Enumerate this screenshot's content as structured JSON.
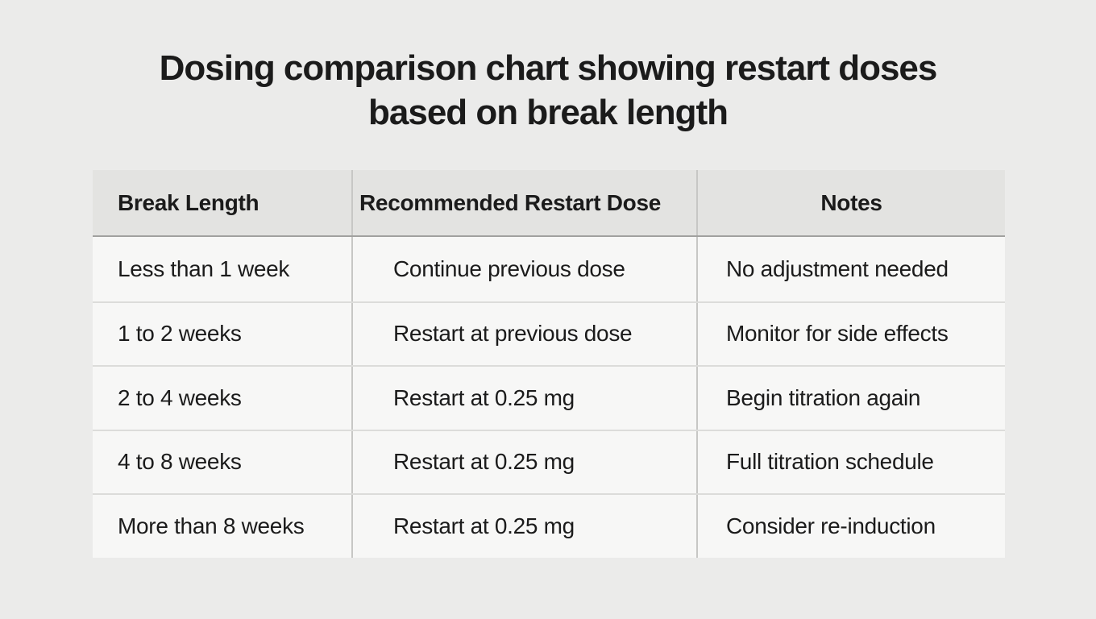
{
  "title": {
    "line1": "Dosing comparison chart showing restart doses",
    "line2": "based on break length"
  },
  "theme": {
    "page_background": "#ebebea",
    "header_background": "#e3e3e1",
    "row_background": "#f7f7f6",
    "header_rule": "#a1a19f",
    "row_rule": "#dcdcda",
    "column_rule": "#c7c7c5",
    "text_color": "#1b1b1b"
  },
  "chart_data": {
    "type": "table",
    "title": "Dosing comparison chart showing restart doses based on break length",
    "columns": [
      "Break Length",
      "Recommended Restart Dose",
      "Notes"
    ],
    "rows": [
      [
        "Less than 1 week",
        "Continue previous dose",
        "No adjustment needed"
      ],
      [
        "1 to 2 weeks",
        "Restart at previous dose",
        "Monitor for side effects"
      ],
      [
        "2 to 4 weeks",
        "Restart at 0.25 mg",
        "Begin titration again"
      ],
      [
        "4 to 8 weeks",
        "Restart at 0.25 mg",
        "Full titration schedule"
      ],
      [
        "More than 8 weeks",
        "Restart at 0.25 mg",
        "Consider re-induction"
      ]
    ],
    "layout": {
      "legend": false,
      "grid": true,
      "header_style": "shaded",
      "notes_header_alignment": "center",
      "body_alignment": "left"
    }
  }
}
